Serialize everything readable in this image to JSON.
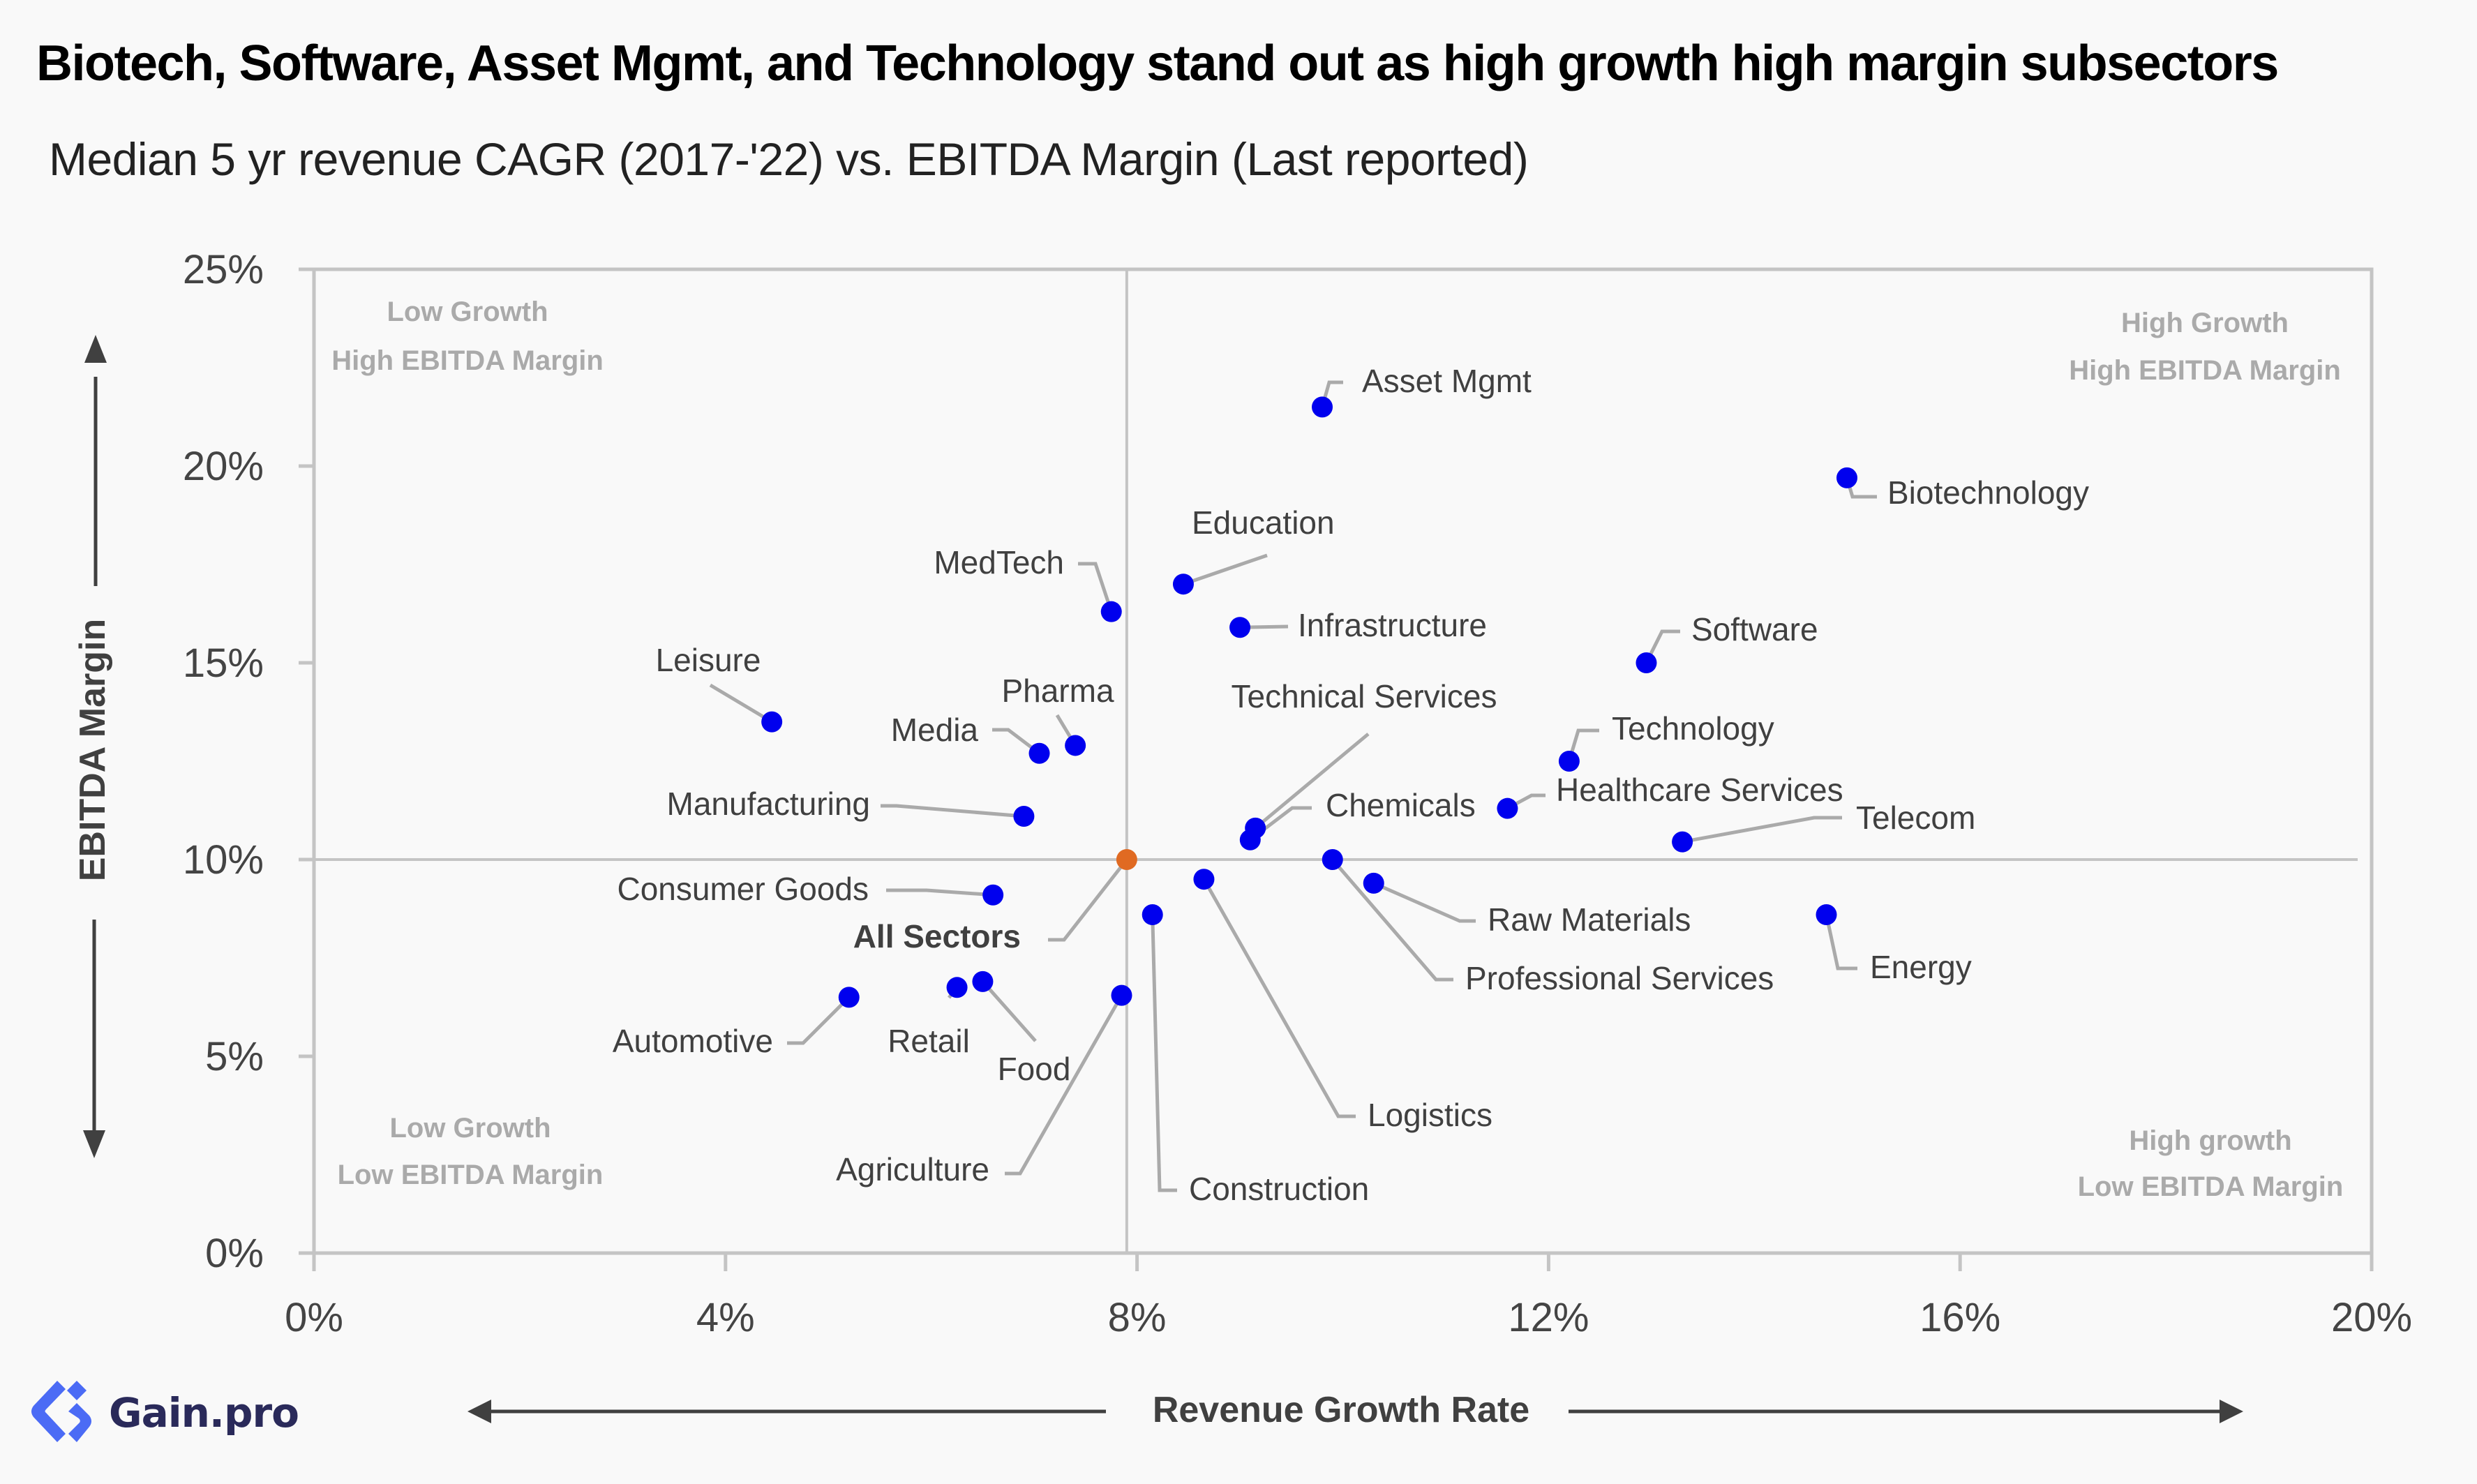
{
  "title": "Biotech, Software, Asset Mgmt, and Technology stand out as high growth high margin subsectors",
  "subtitle": "Median 5 yr revenue CAGR (2017-'22) vs. EBITDA Margin (Last reported)",
  "brand": {
    "name": "Gain.pro",
    "logo_icon": "gain-pro-logo-icon",
    "logo_color": "#4b6bf5",
    "text_color": "#2a2a5a"
  },
  "colors": {
    "sector_point": "#0000ee",
    "all_sectors_point": "#e06a22",
    "leader_line": "#aaaaaa",
    "quadrant_label": "#aaaaaa"
  },
  "chart_data": {
    "type": "scatter",
    "title": "Biotech, Software, Asset Mgmt, and Technology stand out as high growth high margin subsectors",
    "subtitle": "Median 5 yr revenue CAGR (2017-'22) vs. EBITDA Margin (Last reported)",
    "xlabel": "Revenue Growth Rate",
    "ylabel": "EBITDA Margin",
    "xlim": [
      0,
      20
    ],
    "ylim": [
      0,
      25
    ],
    "x_unit": "%",
    "y_unit": "%",
    "x_ticks": [
      0,
      4,
      8,
      12,
      16,
      20
    ],
    "x_tick_labels": [
      "0%",
      "4%",
      "8%",
      "12%",
      "16%",
      "20%"
    ],
    "y_ticks": [
      0,
      5,
      10,
      15,
      20,
      25
    ],
    "y_tick_labels": [
      "0%",
      "5%",
      "10%",
      "15%",
      "20%",
      "25%"
    ],
    "grid": false,
    "reference_lines": {
      "x": 7.9,
      "y": 10.0,
      "note": "quadrant dividers through All Sectors median"
    },
    "quadrants": {
      "top_left": [
        "Low Growth",
        "High EBITDA Margin"
      ],
      "top_right": [
        "High Growth",
        "High EBITDA Margin"
      ],
      "bottom_left": [
        "Low Growth",
        "Low EBITDA Margin"
      ],
      "bottom_right": [
        "High growth",
        "Low EBITDA Margin"
      ]
    },
    "points": [
      {
        "name": "Asset Mgmt",
        "x": 9.8,
        "y": 21.5
      },
      {
        "name": "Biotechnology",
        "x": 14.9,
        "y": 19.7
      },
      {
        "name": "Education",
        "x": 8.45,
        "y": 17.0
      },
      {
        "name": "MedTech",
        "x": 7.75,
        "y": 16.3
      },
      {
        "name": "Infrastructure",
        "x": 9.0,
        "y": 15.9
      },
      {
        "name": "Software",
        "x": 12.95,
        "y": 15.0
      },
      {
        "name": "Leisure",
        "x": 4.45,
        "y": 13.5
      },
      {
        "name": "Pharma",
        "x": 7.4,
        "y": 12.9
      },
      {
        "name": "Media",
        "x": 7.05,
        "y": 12.7
      },
      {
        "name": "Technology",
        "x": 12.2,
        "y": 12.5
      },
      {
        "name": "Healthcare Services",
        "x": 11.6,
        "y": 11.3
      },
      {
        "name": "Manufacturing",
        "x": 6.9,
        "y": 11.1
      },
      {
        "name": "Technical Services",
        "x": 9.15,
        "y": 10.8
      },
      {
        "name": "Chemicals",
        "x": 9.1,
        "y": 10.5
      },
      {
        "name": "Telecom",
        "x": 13.3,
        "y": 10.45
      },
      {
        "name": "All Sectors",
        "x": 7.9,
        "y": 10.0,
        "highlight": true
      },
      {
        "name": "Professional Services",
        "x": 9.9,
        "y": 10.0
      },
      {
        "name": "Logistics",
        "x": 8.65,
        "y": 9.5
      },
      {
        "name": "Raw Materials",
        "x": 10.3,
        "y": 9.4
      },
      {
        "name": "Consumer Goods",
        "x": 6.6,
        "y": 9.1
      },
      {
        "name": "Energy",
        "x": 14.7,
        "y": 8.6
      },
      {
        "name": "Construction",
        "x": 8.15,
        "y": 8.6
      },
      {
        "name": "Food",
        "x": 6.5,
        "y": 6.9
      },
      {
        "name": "Retail",
        "x": 6.25,
        "y": 6.75
      },
      {
        "name": "Agriculture",
        "x": 7.85,
        "y": 6.55
      },
      {
        "name": "Automotive",
        "x": 5.2,
        "y": 6.5
      }
    ]
  }
}
